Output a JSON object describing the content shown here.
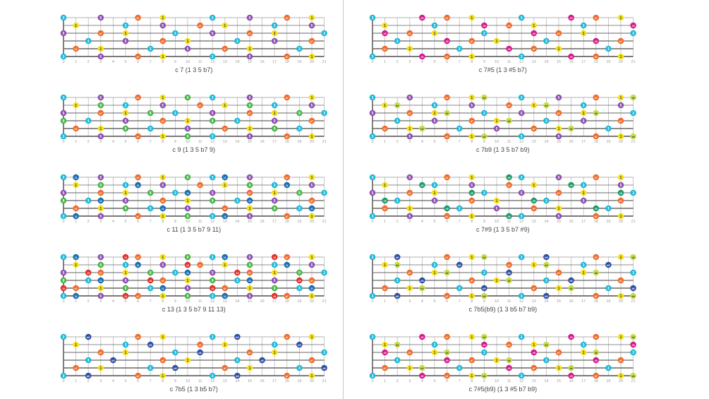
{
  "fret_count": 21,
  "fret_numbers": [
    "0",
    "1",
    "2",
    "3",
    "4",
    "5",
    "6",
    "7",
    "8",
    "9",
    "10",
    "11",
    "12",
    "13",
    "14",
    "15",
    "16",
    "17",
    "18",
    "19",
    "20",
    "21"
  ],
  "colors": {
    "1": "#f5e21a",
    "3": "#1fb8d6",
    "b5": "#2f4fa2",
    "5": "#8e4fb0",
    "#5": "#d6198a",
    "b7": "#f06b2a",
    "b9": "#c8dd4a",
    "9": "#4ab54a",
    "#9": "#1f9a6a",
    "11": "#1a6fb0",
    "13": "#e0302a"
  },
  "diagrams": [
    {
      "id": "c7",
      "caption": "c 7 (1 3 5 b7)",
      "tones": [
        "1",
        "3",
        "5",
        "b7"
      ]
    },
    {
      "id": "c9",
      "caption": "c 9 (1 3 5 b7 9)",
      "tones": [
        "1",
        "3",
        "5",
        "b7",
        "9"
      ]
    },
    {
      "id": "c11",
      "caption": "c 11 (1 3 5 b7 9 11)",
      "tones": [
        "1",
        "3",
        "5",
        "b7",
        "9",
        "11"
      ]
    },
    {
      "id": "c13",
      "caption": "c 13 (1 3 5 b7 9 11 13)",
      "tones": [
        "1",
        "3",
        "5",
        "b7",
        "9",
        "11",
        "13"
      ]
    },
    {
      "id": "c7b5",
      "caption": "c 7b5 (1 3 b5 b7)",
      "tones": [
        "1",
        "3",
        "b5",
        "b7"
      ]
    },
    {
      "id": "c7s5",
      "caption": "c 7#5 (1 3 #5 b7)",
      "tones": [
        "1",
        "3",
        "#5",
        "b7"
      ]
    },
    {
      "id": "c7b9",
      "caption": "c 7b9 (1 3 5 b7 b9)",
      "tones": [
        "1",
        "3",
        "5",
        "b7",
        "b9"
      ]
    },
    {
      "id": "c7s9",
      "caption": "c 7#9 (1 3 5 b7 #9)",
      "tones": [
        "1",
        "3",
        "5",
        "b7",
        "#9"
      ]
    },
    {
      "id": "c7b5b9",
      "caption": "c 7b5(b9) (1 3 b5 b7 b9)",
      "tones": [
        "1",
        "3",
        "b5",
        "b7",
        "b9"
      ]
    },
    {
      "id": "c7s5b9",
      "caption": "c 7#5(b9) (1 3 #5 b7 b9)",
      "tones": [
        "1",
        "3",
        "#5",
        "b7",
        "b9"
      ]
    }
  ]
}
